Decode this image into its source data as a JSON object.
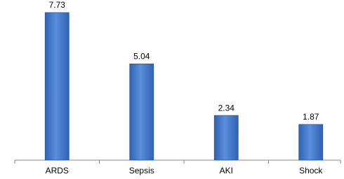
{
  "chart_data": {
    "type": "bar",
    "categories": [
      "ARDS",
      "Sepsis",
      "AKI",
      "Shock"
    ],
    "values": [
      7.73,
      5.04,
      2.34,
      1.87
    ],
    "color": "#4a80d2"
  }
}
